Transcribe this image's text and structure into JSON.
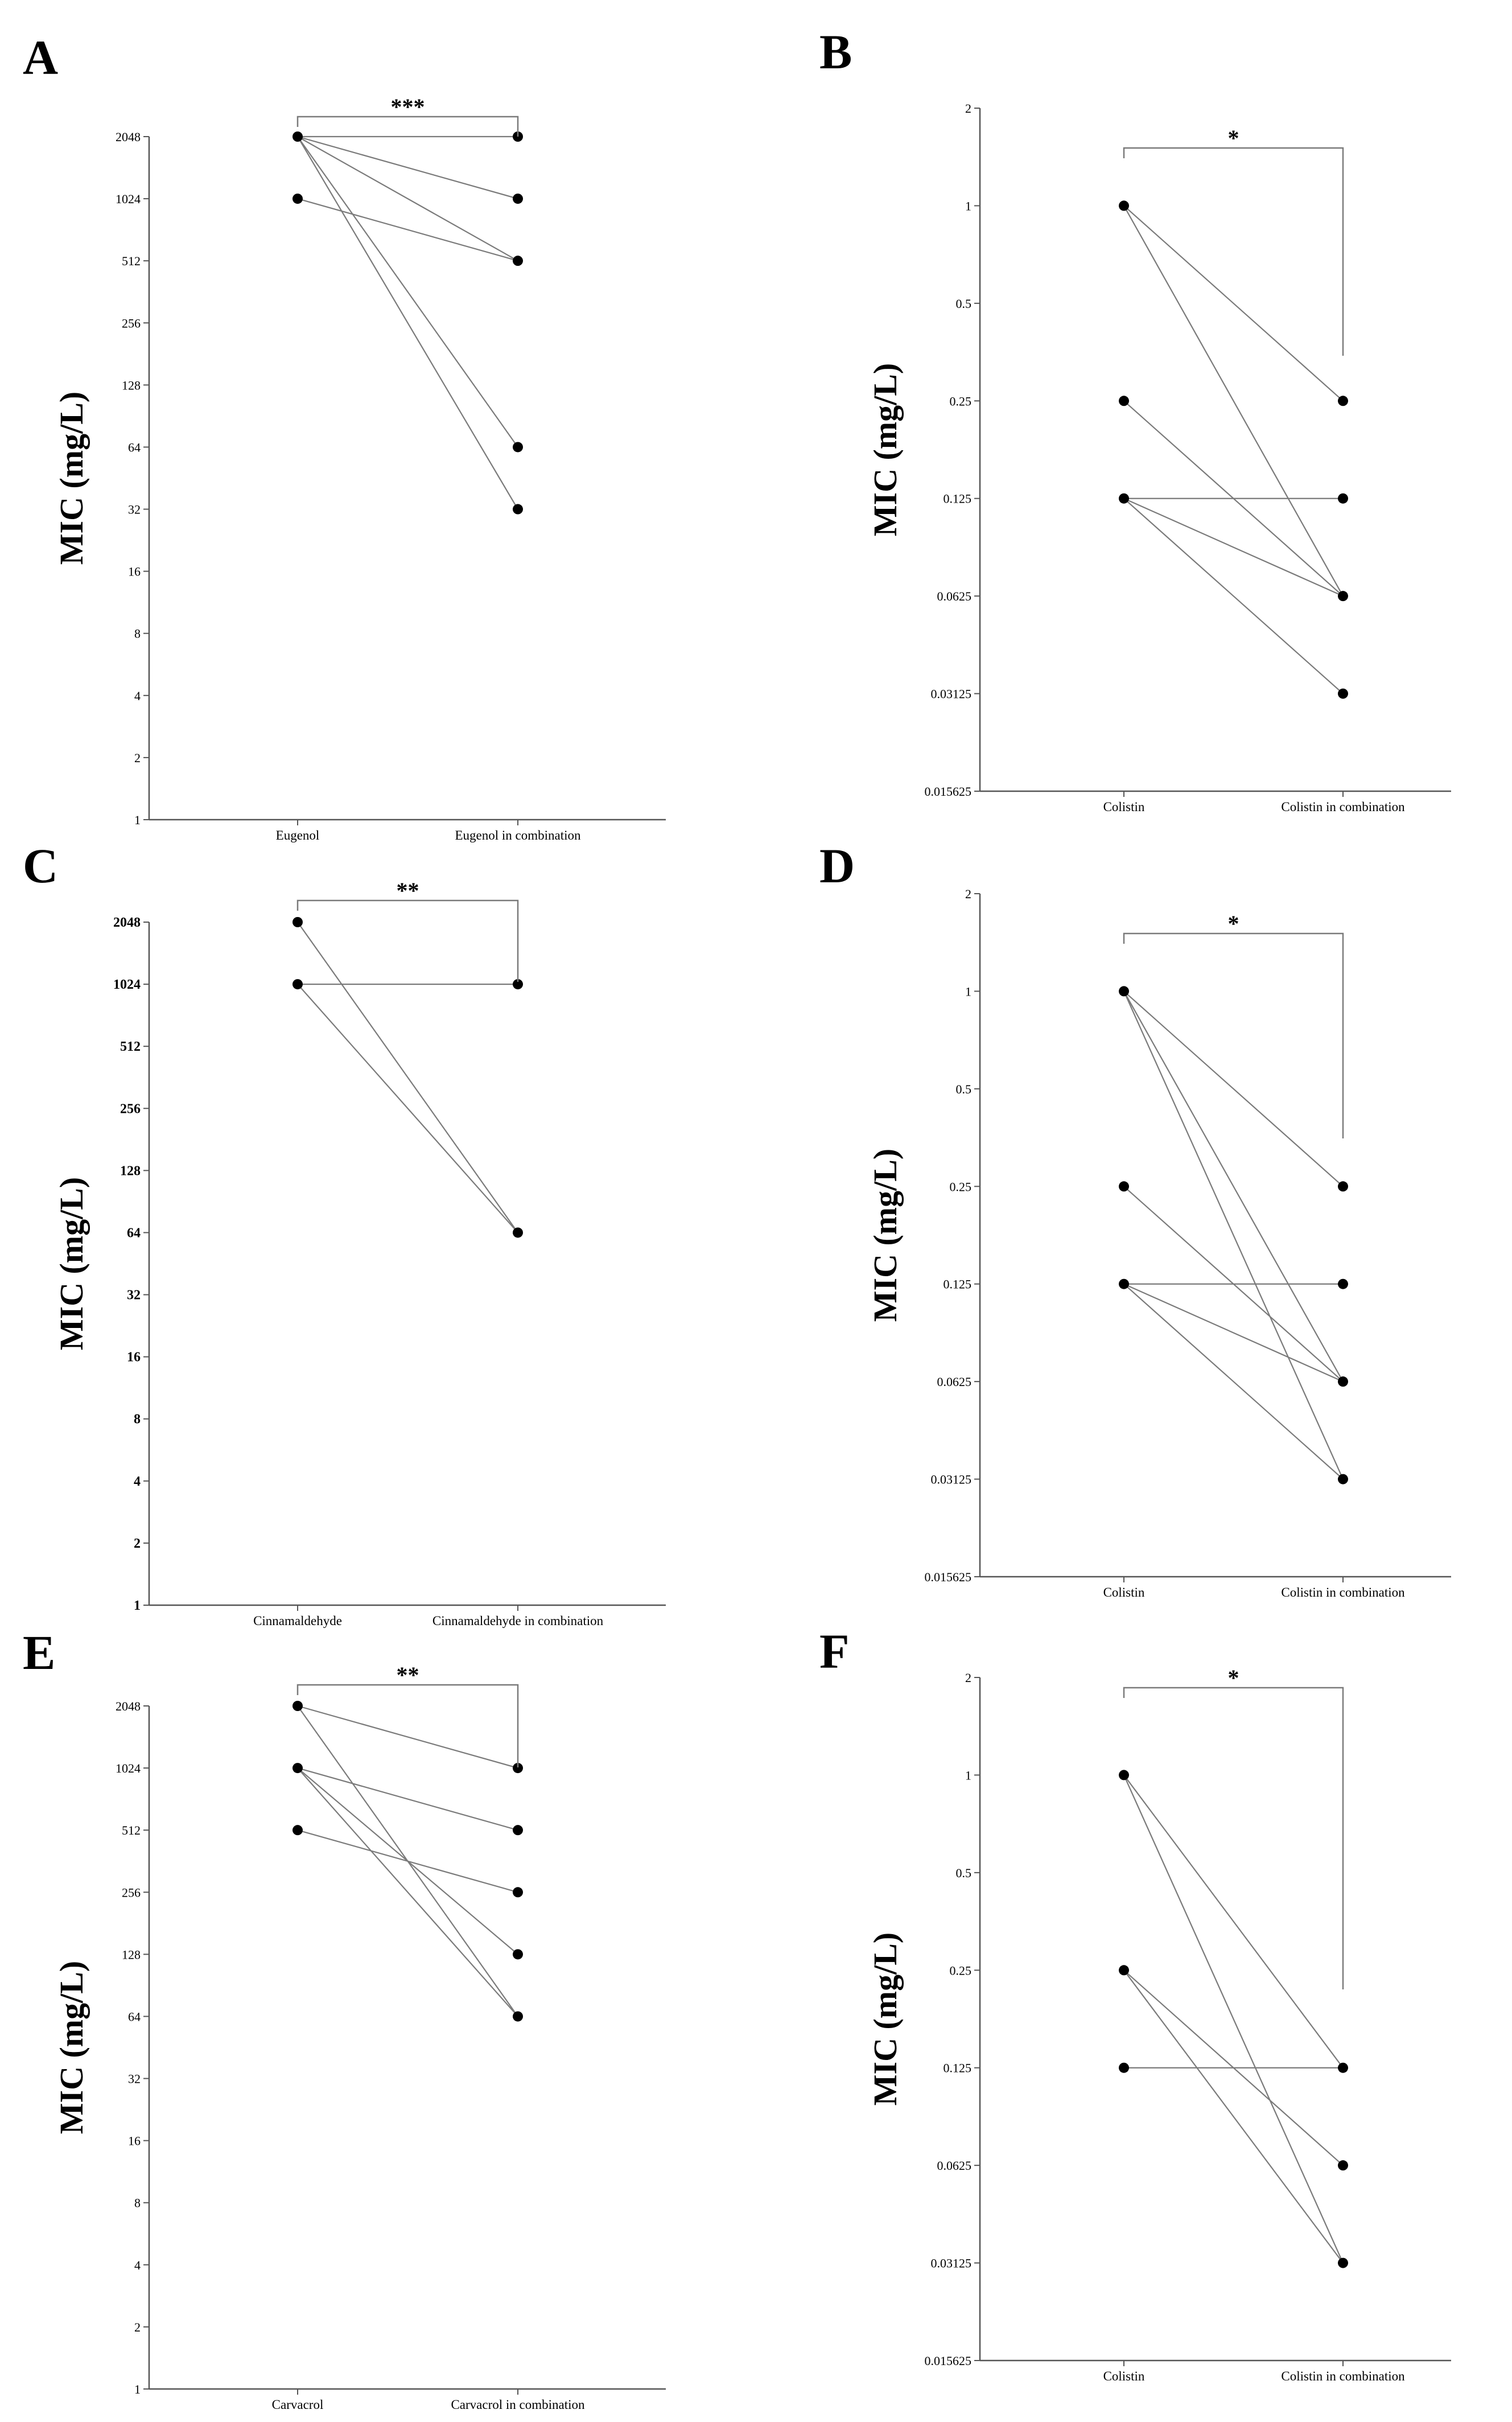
{
  "chart_data": [
    {
      "type": "line",
      "panel": "A",
      "ylabel": "MIC (mg/L)",
      "yscale": "log2",
      "ylim": [
        1,
        2048
      ],
      "yticks": [
        "1",
        "2",
        "4",
        "8",
        "16",
        "32",
        "64",
        "128",
        "256",
        "512",
        "1024",
        "2048"
      ],
      "categories": [
        "Eugenol",
        "Eugenol in combination"
      ],
      "pairs": [
        [
          2048,
          2048
        ],
        [
          2048,
          1024
        ],
        [
          2048,
          512
        ],
        [
          1024,
          512
        ],
        [
          2048,
          64
        ],
        [
          2048,
          32
        ]
      ],
      "significance": "***"
    },
    {
      "type": "line",
      "panel": "B",
      "ylabel": "MIC (mg/L)",
      "yscale": "log2",
      "ylim": [
        0.015625,
        2
      ],
      "yticks": [
        "0.015625",
        "0.03125",
        "0.0625",
        "0.125",
        "0.25",
        "0.5",
        "1",
        "2"
      ],
      "categories": [
        "Colistin",
        "Colistin in combination"
      ],
      "pairs": [
        [
          1,
          0.25
        ],
        [
          1,
          0.0625
        ],
        [
          0.25,
          0.0625
        ],
        [
          0.125,
          0.125
        ],
        [
          0.125,
          0.0625
        ],
        [
          0.125,
          0.03125
        ]
      ],
      "significance": "*"
    },
    {
      "type": "line",
      "panel": "C",
      "ylabel": "MIC (mg/L)",
      "yscale": "log2",
      "ylim": [
        1,
        2048
      ],
      "yticks": [
        "1",
        "2",
        "4",
        "8",
        "16",
        "32",
        "64",
        "128",
        "256",
        "512",
        "1024",
        "2048"
      ],
      "categories": [
        "Cinnamaldehyde",
        "Cinnamaldehyde in combination"
      ],
      "pairs": [
        [
          2048,
          64
        ],
        [
          1024,
          1024
        ],
        [
          1024,
          64
        ]
      ],
      "significance": "**"
    },
    {
      "type": "line",
      "panel": "D",
      "ylabel": "MIC (mg/L)",
      "yscale": "log2",
      "ylim": [
        0.015625,
        2
      ],
      "yticks": [
        "0.015625",
        "0.03125",
        "0.0625",
        "0.125",
        "0.25",
        "0.5",
        "1",
        "2"
      ],
      "categories": [
        "Colistin",
        "Colistin in combination"
      ],
      "pairs": [
        [
          1,
          0.25
        ],
        [
          1,
          0.0625
        ],
        [
          1,
          0.03125
        ],
        [
          0.25,
          0.0625
        ],
        [
          0.125,
          0.125
        ],
        [
          0.125,
          0.0625
        ],
        [
          0.125,
          0.03125
        ]
      ],
      "significance": "*"
    },
    {
      "type": "line",
      "panel": "E",
      "ylabel": "MIC (mg/L)",
      "yscale": "log2",
      "ylim": [
        1,
        2048
      ],
      "yticks": [
        "1",
        "2",
        "4",
        "8",
        "16",
        "32",
        "64",
        "128",
        "256",
        "512",
        "1024",
        "2048"
      ],
      "categories": [
        "Carvacrol",
        "Carvacrol in combination"
      ],
      "pairs": [
        [
          2048,
          1024
        ],
        [
          2048,
          64
        ],
        [
          1024,
          512
        ],
        [
          1024,
          128
        ],
        [
          1024,
          64
        ],
        [
          512,
          256
        ]
      ],
      "significance": "**"
    },
    {
      "type": "line",
      "panel": "F",
      "ylabel": "MIC (mg/L)",
      "yscale": "log2",
      "ylim": [
        0.015625,
        2
      ],
      "yticks": [
        "0.015625",
        "0.03125",
        "0.0625",
        "0.125",
        "0.25",
        "0.5",
        "1",
        "2"
      ],
      "categories": [
        "Colistin",
        "Colistin in combination"
      ],
      "pairs": [
        [
          1,
          0.125
        ],
        [
          1,
          0.03125
        ],
        [
          0.25,
          0.0625
        ],
        [
          0.25,
          0.03125
        ],
        [
          0.125,
          0.125
        ]
      ],
      "significance": "*"
    }
  ]
}
